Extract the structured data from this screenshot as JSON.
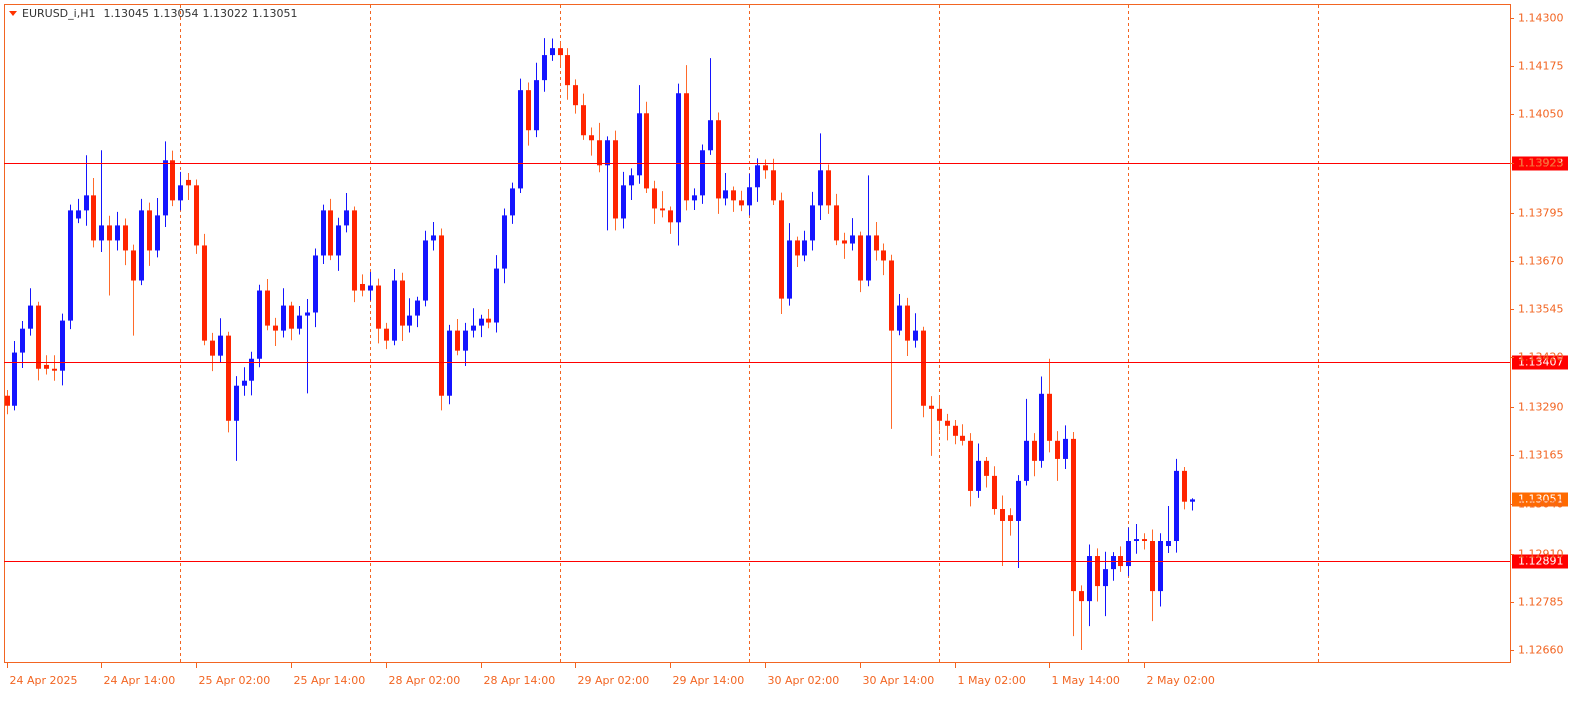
{
  "chart_data": {
    "type": "candlestick",
    "title": "EURUSD_i,H1",
    "up_color": "#1414ff",
    "down_color": "#ff2400",
    "down_wick_color": "#ff6a2a",
    "level_color": "#ff0000",
    "current_color": "#ff6a00",
    "separator_color": "#f26522",
    "ylim": [
      1.12629,
      1.14334
    ],
    "yticks": [
      {
        "value": 1.143,
        "label": "1.14300"
      },
      {
        "value": 1.14175,
        "label": "1.14175"
      },
      {
        "value": 1.1405,
        "label": "1.14050"
      },
      {
        "value": 1.13925,
        "label": "1.13925"
      },
      {
        "value": 1.13795,
        "label": "1.13795"
      },
      {
        "value": 1.1367,
        "label": "1.13670"
      },
      {
        "value": 1.13545,
        "label": "1.13545"
      },
      {
        "value": 1.1342,
        "label": "1.13420"
      },
      {
        "value": 1.1329,
        "label": "1.13290"
      },
      {
        "value": 1.13165,
        "label": "1.13165"
      },
      {
        "value": 1.1304,
        "label": "1.13040"
      },
      {
        "value": 1.1291,
        "label": "1.12910"
      },
      {
        "value": 1.12785,
        "label": "1.12785"
      },
      {
        "value": 1.1266,
        "label": "1.12660"
      }
    ],
    "xticks": [
      {
        "value": 0,
        "label": "24 Apr 2025"
      },
      {
        "value": 12,
        "label": "24 Apr 14:00"
      },
      {
        "value": 24,
        "label": "25 Apr 02:00"
      },
      {
        "value": 36,
        "label": "25 Apr 14:00"
      },
      {
        "value": 48,
        "label": "28 Apr 02:00"
      },
      {
        "value": 60,
        "label": "28 Apr 14:00"
      },
      {
        "value": 72,
        "label": "29 Apr 02:00"
      },
      {
        "value": 84,
        "label": "29 Apr 14:00"
      },
      {
        "value": 96,
        "label": "30 Apr 02:00"
      },
      {
        "value": 108,
        "label": "30 Apr 14:00"
      },
      {
        "value": 120,
        "label": "1 May 02:00"
      },
      {
        "value": 132,
        "label": "1 May 14:00"
      },
      {
        "value": 144,
        "label": "2 May 02:00"
      }
    ],
    "period_separators": [
      22,
      46,
      70,
      94,
      118,
      142,
      166
    ],
    "levels": [
      1.13923,
      1.13407,
      1.12891
    ],
    "ohlc": [
      [
        1.1332,
        1.13335,
        1.13272,
        1.13294
      ],
      [
        1.13294,
        1.13462,
        1.13282,
        1.13432
      ],
      [
        1.13432,
        1.13514,
        1.13392,
        1.13494
      ],
      [
        1.13494,
        1.13599,
        1.13476,
        1.13554
      ],
      [
        1.13554,
        1.13564,
        1.1336,
        1.1339
      ],
      [
        1.134,
        1.13425,
        1.13375,
        1.1339
      ],
      [
        1.1339,
        1.13425,
        1.13359,
        1.13385
      ],
      [
        1.13385,
        1.13533,
        1.13347,
        1.13515
      ],
      [
        1.13515,
        1.13816,
        1.13493,
        1.13801
      ],
      [
        1.1378,
        1.13831,
        1.13768,
        1.13801
      ],
      [
        1.13801,
        1.13944,
        1.13761,
        1.1384
      ],
      [
        1.1384,
        1.13885,
        1.13705,
        1.13723
      ],
      [
        1.13723,
        1.13957,
        1.13693,
        1.13762
      ],
      [
        1.13762,
        1.13787,
        1.1358,
        1.13723
      ],
      [
        1.13723,
        1.13797,
        1.13697,
        1.13762
      ],
      [
        1.13762,
        1.1378,
        1.13659,
        1.13697
      ],
      [
        1.13697,
        1.13712,
        1.13476,
        1.13619
      ],
      [
        1.13619,
        1.13831,
        1.13607,
        1.13801
      ],
      [
        1.13801,
        1.13821,
        1.13657,
        1.13697
      ],
      [
        1.13697,
        1.13833,
        1.13679,
        1.13788
      ],
      [
        1.13788,
        1.1398,
        1.13758,
        1.13931
      ],
      [
        1.13931,
        1.13956,
        1.13812,
        1.13827
      ],
      [
        1.13827,
        1.13901,
        1.13801,
        1.13866
      ],
      [
        1.1388,
        1.13898,
        1.13828,
        1.13866
      ],
      [
        1.13866,
        1.13881,
        1.13688,
        1.1371
      ],
      [
        1.1371,
        1.1374,
        1.13451,
        1.13463
      ],
      [
        1.13463,
        1.13483,
        1.13384,
        1.13424
      ],
      [
        1.13424,
        1.13521,
        1.13406,
        1.13476
      ],
      [
        1.13476,
        1.13486,
        1.13225,
        1.13255
      ],
      [
        1.13255,
        1.13371,
        1.13151,
        1.13346
      ],
      [
        1.13346,
        1.13394,
        1.1332,
        1.13359
      ],
      [
        1.13359,
        1.13434,
        1.13321,
        1.13416
      ],
      [
        1.13416,
        1.13608,
        1.13394,
        1.13593
      ],
      [
        1.13593,
        1.13623,
        1.1349,
        1.13502
      ],
      [
        1.13502,
        1.13522,
        1.13449,
        1.13489
      ],
      [
        1.13489,
        1.13599,
        1.13471,
        1.13554
      ],
      [
        1.13554,
        1.13564,
        1.13464,
        1.13494
      ],
      [
        1.13494,
        1.13553,
        1.13479,
        1.13528
      ],
      [
        1.13528,
        1.13571,
        1.13326,
        1.13536
      ],
      [
        1.13536,
        1.13702,
        1.13498,
        1.13684
      ],
      [
        1.13684,
        1.13816,
        1.13662,
        1.13801
      ],
      [
        1.13801,
        1.13831,
        1.13672,
        1.13684
      ],
      [
        1.13684,
        1.13782,
        1.13644,
        1.13762
      ],
      [
        1.13762,
        1.13846,
        1.13744,
        1.13801
      ],
      [
        1.13801,
        1.13811,
        1.13563,
        1.13593
      ],
      [
        1.1361,
        1.13635,
        1.13578,
        1.13593
      ],
      [
        1.13593,
        1.13641,
        1.13567,
        1.13606
      ],
      [
        1.13606,
        1.13624,
        1.13456,
        1.13494
      ],
      [
        1.13494,
        1.13509,
        1.13441,
        1.13463
      ],
      [
        1.13463,
        1.13649,
        1.13451,
        1.13619
      ],
      [
        1.13619,
        1.13639,
        1.13462,
        1.13502
      ],
      [
        1.13502,
        1.13573,
        1.13484,
        1.13528
      ],
      [
        1.13528,
        1.13577,
        1.13498,
        1.13567
      ],
      [
        1.13567,
        1.13748,
        1.13552,
        1.13723
      ],
      [
        1.13723,
        1.13771,
        1.13697,
        1.13736
      ],
      [
        1.13736,
        1.13754,
        1.13282,
        1.1332
      ],
      [
        1.1332,
        1.13504,
        1.13298,
        1.13489
      ],
      [
        1.13489,
        1.13519,
        1.13425,
        1.13437
      ],
      [
        1.13437,
        1.13509,
        1.13397,
        1.13489
      ],
      [
        1.13489,
        1.13547,
        1.13471,
        1.13502
      ],
      [
        1.13502,
        1.1353,
        1.13472,
        1.1352
      ],
      [
        1.1352,
        1.13545,
        1.13495,
        1.1351
      ],
      [
        1.1351,
        1.13685,
        1.13484,
        1.1365
      ],
      [
        1.1365,
        1.13806,
        1.13612,
        1.13788
      ],
      [
        1.13788,
        1.13873,
        1.13766,
        1.13858
      ],
      [
        1.13858,
        1.14143,
        1.13846,
        1.14113
      ],
      [
        1.14113,
        1.14133,
        1.13969,
        1.14009
      ],
      [
        1.14009,
        1.14184,
        1.13991,
        1.14139
      ],
      [
        1.14139,
        1.14248,
        1.14109,
        1.14204
      ],
      [
        1.14204,
        1.14247,
        1.14189,
        1.14222
      ],
      [
        1.14222,
        1.14238,
        1.14178,
        1.14204
      ],
      [
        1.14204,
        1.14222,
        1.14088,
        1.14126
      ],
      [
        1.14126,
        1.14141,
        1.14052,
        1.14074
      ],
      [
        1.14074,
        1.14104,
        1.13984,
        1.13996
      ],
      [
        1.13996,
        1.14016,
        1.13943,
        1.13983
      ],
      [
        1.13983,
        1.14028,
        1.139,
        1.13918
      ],
      [
        1.13918,
        1.13993,
        1.13749,
        1.13983
      ],
      [
        1.13983,
        1.14008,
        1.13749,
        1.1378
      ],
      [
        1.1378,
        1.13901,
        1.13754,
        1.13866
      ],
      [
        1.13866,
        1.1391,
        1.13828,
        1.13892
      ],
      [
        1.13892,
        1.14126,
        1.1387,
        1.14053
      ],
      [
        1.14053,
        1.14083,
        1.13846,
        1.13858
      ],
      [
        1.13858,
        1.13878,
        1.13766,
        1.13806
      ],
      [
        1.13806,
        1.13851,
        1.13783,
        1.13801
      ],
      [
        1.13801,
        1.13811,
        1.1374,
        1.1377
      ],
      [
        1.1377,
        1.1413,
        1.1371,
        1.14105
      ],
      [
        1.14105,
        1.14178,
        1.13801,
        1.13827
      ],
      [
        1.13827,
        1.13858,
        1.13802,
        1.1384
      ],
      [
        1.1384,
        1.13972,
        1.13818,
        1.13957
      ],
      [
        1.13957,
        1.14196,
        1.13945,
        1.14035
      ],
      [
        1.14035,
        1.14055,
        1.13792,
        1.13832
      ],
      [
        1.13832,
        1.13898,
        1.13814,
        1.13853
      ],
      [
        1.13853,
        1.13863,
        1.13797,
        1.13827
      ],
      [
        1.13827,
        1.13852,
        1.13799,
        1.13814
      ],
      [
        1.13814,
        1.13896,
        1.13788,
        1.13861
      ],
      [
        1.13861,
        1.13936,
        1.13823,
        1.13918
      ],
      [
        1.13918,
        1.13933,
        1.13883,
        1.13905
      ],
      [
        1.13905,
        1.13935,
        1.13815,
        1.13827
      ],
      [
        1.13827,
        1.13847,
        1.13532,
        1.13572
      ],
      [
        1.13572,
        1.13768,
        1.13554,
        1.13723
      ],
      [
        1.13723,
        1.13733,
        1.13654,
        1.13684
      ],
      [
        1.13684,
        1.13748,
        1.13669,
        1.13723
      ],
      [
        1.13723,
        1.13849,
        1.13697,
        1.13814
      ],
      [
        1.13814,
        1.14001,
        1.13776,
        1.13905
      ],
      [
        1.13905,
        1.1392,
        1.13792,
        1.13814
      ],
      [
        1.13814,
        1.13844,
        1.13711,
        1.13723
      ],
      [
        1.13723,
        1.13743,
        1.13675,
        1.13715
      ],
      [
        1.13715,
        1.13781,
        1.13697,
        1.13736
      ],
      [
        1.13736,
        1.13746,
        1.13589,
        1.13619
      ],
      [
        1.13619,
        1.13892,
        1.13604,
        1.13736
      ],
      [
        1.13736,
        1.13771,
        1.13671,
        1.13697
      ],
      [
        1.13697,
        1.13715,
        1.13633,
        1.13671
      ],
      [
        1.13671,
        1.13686,
        1.13234,
        1.13489
      ],
      [
        1.13489,
        1.13584,
        1.13477,
        1.13554
      ],
      [
        1.13554,
        1.13574,
        1.13423,
        1.13463
      ],
      [
        1.13463,
        1.13534,
        1.13445,
        1.13489
      ],
      [
        1.13489,
        1.13499,
        1.13264,
        1.13294
      ],
      [
        1.13294,
        1.13319,
        1.13164,
        1.13286
      ],
      [
        1.13286,
        1.13321,
        1.13229,
        1.13255
      ],
      [
        1.13255,
        1.13273,
        1.13204,
        1.13242
      ],
      [
        1.13242,
        1.13257,
        1.13194,
        1.13216
      ],
      [
        1.13216,
        1.13246,
        1.13191,
        1.13203
      ],
      [
        1.13203,
        1.13223,
        1.13033,
        1.13073
      ],
      [
        1.13073,
        1.13196,
        1.13055,
        1.13151
      ],
      [
        1.13151,
        1.13161,
        1.13082,
        1.13112
      ],
      [
        1.13112,
        1.13137,
        1.13011,
        1.13026
      ],
      [
        1.13026,
        1.13061,
        1.12878,
        1.12995
      ],
      [
        1.1301,
        1.13028,
        1.12957,
        1.12995
      ],
      [
        1.12995,
        1.13114,
        1.12873,
        1.13099
      ],
      [
        1.13099,
        1.13312,
        1.13087,
        1.13203
      ],
      [
        1.13203,
        1.13223,
        1.13111,
        1.13151
      ],
      [
        1.13151,
        1.1337,
        1.13133,
        1.13325
      ],
      [
        1.13325,
        1.13416,
        1.13173,
        1.13203
      ],
      [
        1.13203,
        1.13228,
        1.13099,
        1.13156
      ],
      [
        1.13156,
        1.13243,
        1.1313,
        1.13208
      ],
      [
        1.13208,
        1.13226,
        1.12696,
        1.12813
      ],
      [
        1.12813,
        1.12828,
        1.1266,
        1.12787
      ],
      [
        1.12787,
        1.12934,
        1.12722,
        1.12904
      ],
      [
        1.12904,
        1.12924,
        1.12786,
        1.12826
      ],
      [
        1.12826,
        1.12915,
        1.12748,
        1.1287
      ],
      [
        1.1287,
        1.12914,
        1.1284,
        1.12904
      ],
      [
        1.12904,
        1.12929,
        1.12863,
        1.12878
      ],
      [
        1.12878,
        1.12978,
        1.12852,
        1.12943
      ],
      [
        1.12943,
        1.12987,
        1.1291,
        1.12948
      ],
      [
        1.12948,
        1.12963,
        1.12921,
        1.12943
      ],
      [
        1.12943,
        1.12973,
        1.12735,
        1.12813
      ],
      [
        1.12813,
        1.12963,
        1.12773,
        1.12943
      ],
      [
        1.1293,
        1.13034,
        1.12912,
        1.12943
      ],
      [
        1.12943,
        1.13156,
        1.12913,
        1.13125
      ],
      [
        1.13125,
        1.13135,
        1.13025,
        1.13045
      ],
      [
        1.13045,
        1.13054,
        1.13022,
        1.13051
      ]
    ]
  }
}
